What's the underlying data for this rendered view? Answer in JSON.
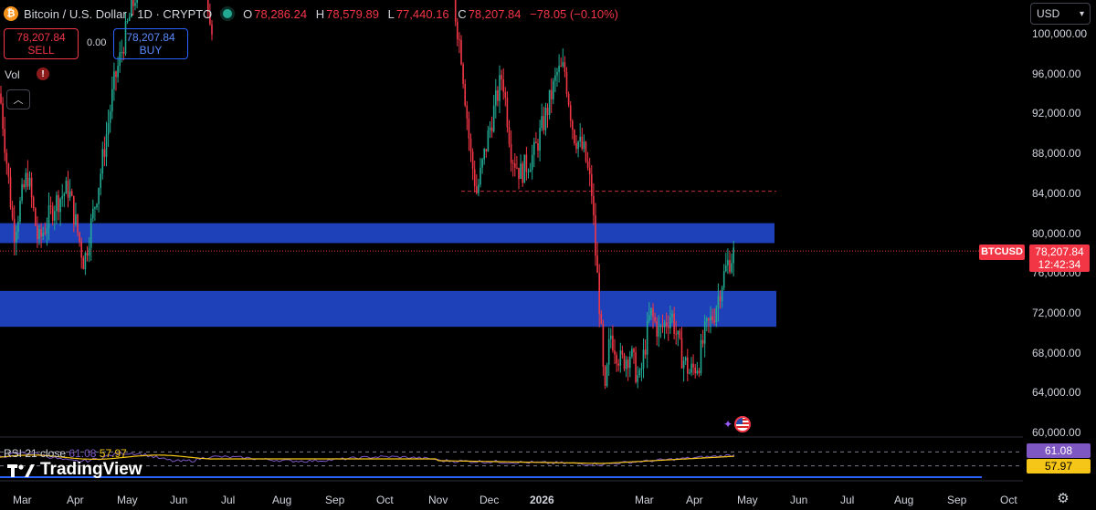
{
  "header": {
    "symbol": "Bitcoin / U.S. Dollar · 1D · CRYPTO",
    "ohlc": [
      {
        "label": "O",
        "value": "78,286.24"
      },
      {
        "label": "H",
        "value": "78,579.89"
      },
      {
        "label": "L",
        "value": "77,440.16"
      },
      {
        "label": "C",
        "value": "78,207.84"
      }
    ],
    "change": "−78.05 (−0.10%)"
  },
  "trade": {
    "sell_price": "78,207.84",
    "sell_label": "SELL",
    "spread": "0.00",
    "buy_price": "78,207.84",
    "buy_label": "BUY"
  },
  "indicators": {
    "volume_label": "Vol",
    "volume_badge": "!"
  },
  "currency": "USD",
  "price_axis": [
    "100,000.00",
    "96,000.00",
    "92,000.00",
    "88,000.00",
    "84,000.00",
    "80,000.00",
    "76,000.00",
    "72,000.00",
    "68,000.00",
    "64,000.00",
    "60,000.00"
  ],
  "last_price": {
    "symbol": "BTCUSD",
    "price": "78,207.84",
    "countdown": "12:42:34"
  },
  "rsi": {
    "label": "RSI 21 close",
    "value": "61.08",
    "ma": "57.97"
  },
  "time_axis": [
    "Mar",
    "Apr",
    "May",
    "Jun",
    "Jul",
    "Aug",
    "Sep",
    "Oct",
    "Nov",
    "Dec",
    "2026",
    "Mar",
    "Apr",
    "May",
    "Jun",
    "Jul",
    "Aug",
    "Sep",
    "Oct"
  ],
  "branding": "TradingView",
  "colors": {
    "up": "#22ab94",
    "down": "#f23645",
    "zone": "#2147c9",
    "rsi": "#7e57c2",
    "rsi_ma": "#f5c518"
  },
  "icons": {
    "settings": "gear-icon",
    "events": "us-flag-icon"
  },
  "chart_data": {
    "type": "candlestick",
    "y_range": [
      60000,
      100000
    ],
    "zones": [
      {
        "from": 79000,
        "to": 81000
      },
      {
        "from": 70600,
        "to": 74200
      }
    ],
    "levels": [
      84200,
      78207.84
    ],
    "rsi_range": [
      0,
      100
    ]
  }
}
